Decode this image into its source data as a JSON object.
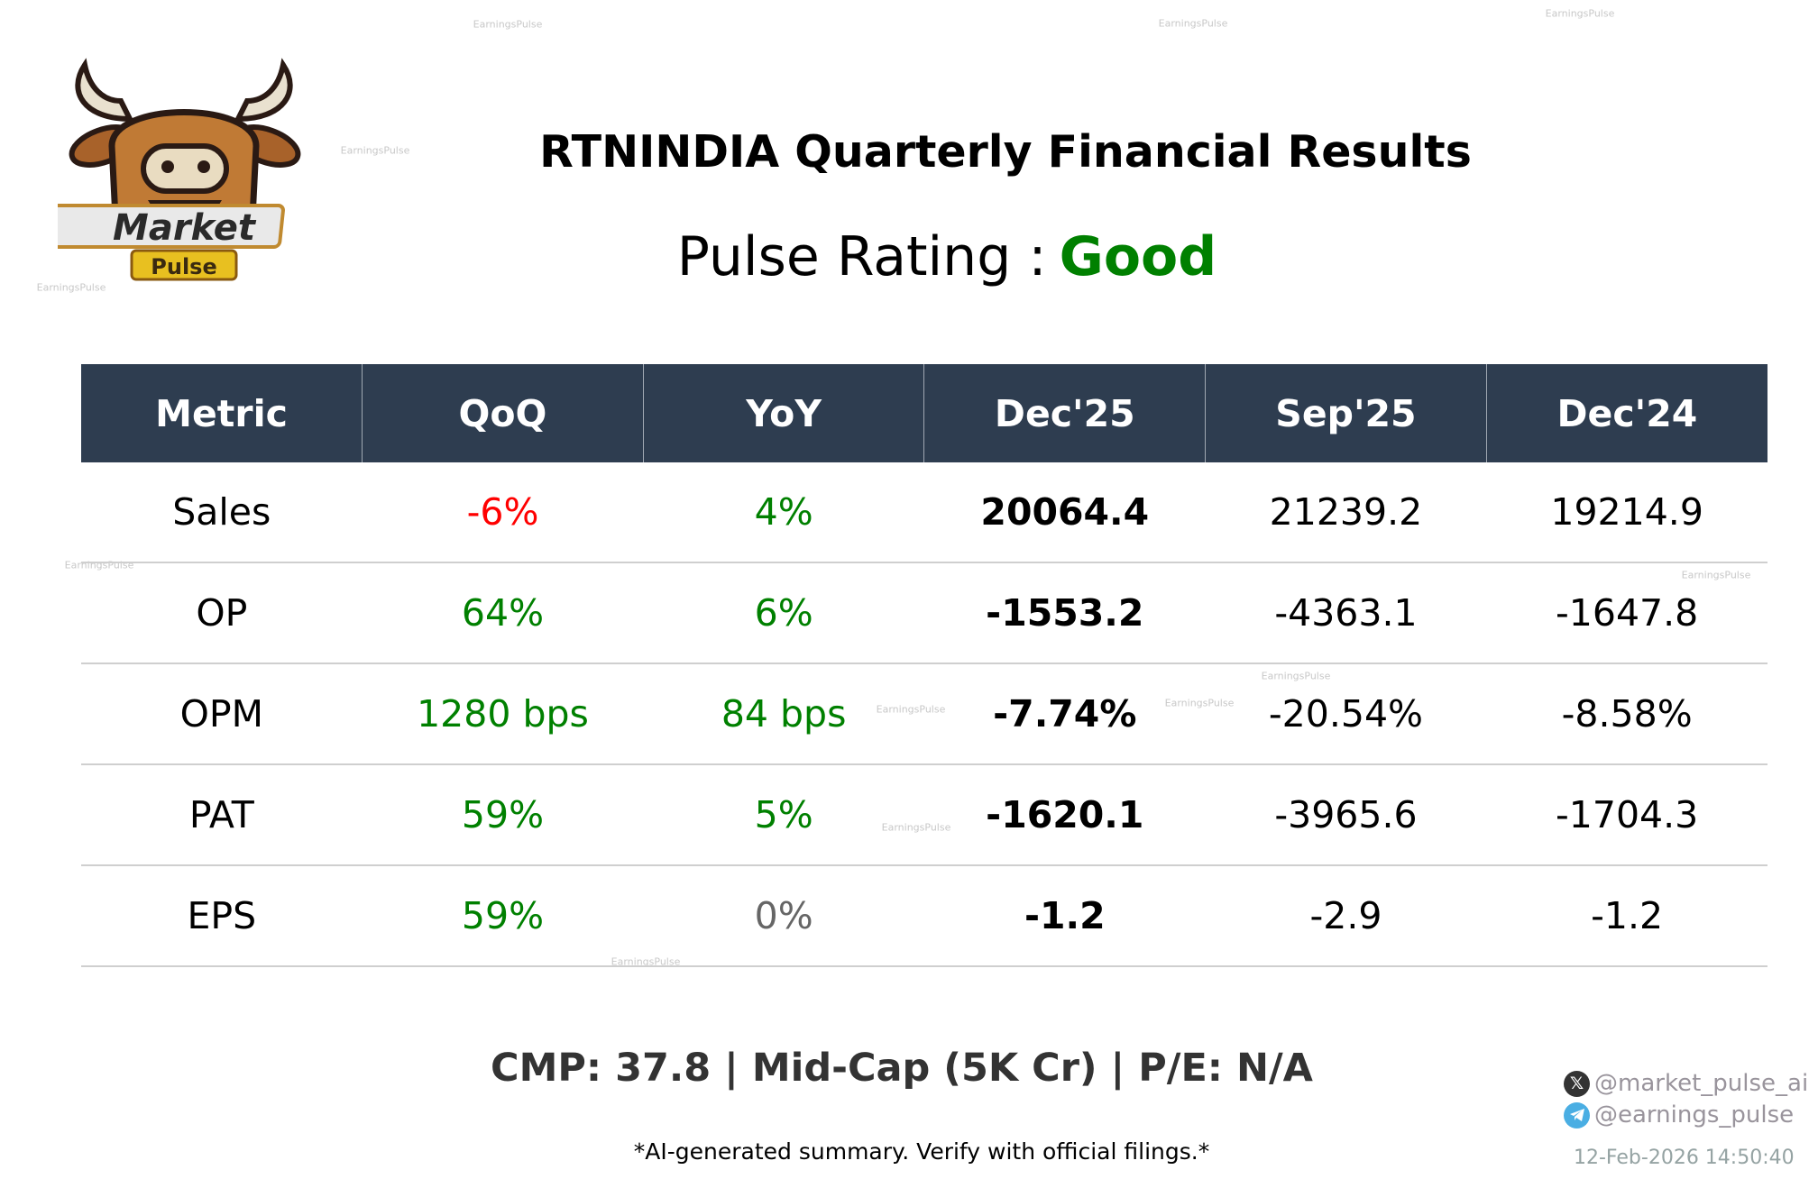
{
  "header": {
    "title": "RTNINDIA Quarterly Financial Results",
    "rating_label": "Pulse Rating :",
    "rating_value": "Good",
    "rating_color": "#008000"
  },
  "logo": {
    "text_line1": "Market",
    "text_line2": "Pulse"
  },
  "watermark": "EarningsPulse",
  "table": {
    "columns": [
      "Metric",
      "QoQ",
      "YoY",
      "Dec'25",
      "Sep'25",
      "Dec'24"
    ],
    "rows": [
      {
        "metric": "Sales",
        "qoq": "-6%",
        "qoq_color": "#ff0000",
        "yoy": "4%",
        "yoy_color": "#008000",
        "cur": "20064.4",
        "prev": "21239.2",
        "yago": "19214.9"
      },
      {
        "metric": "OP",
        "qoq": "64%",
        "qoq_color": "#008000",
        "yoy": "6%",
        "yoy_color": "#008000",
        "cur": "-1553.2",
        "prev": "-4363.1",
        "yago": "-1647.8"
      },
      {
        "metric": "OPM",
        "qoq": "1280 bps",
        "qoq_color": "#008000",
        "yoy": "84 bps",
        "yoy_color": "#008000",
        "cur": "-7.74%",
        "prev": "-20.54%",
        "yago": "-8.58%"
      },
      {
        "metric": "PAT",
        "qoq": "59%",
        "qoq_color": "#008000",
        "yoy": "5%",
        "yoy_color": "#008000",
        "cur": "-1620.1",
        "prev": "-3965.6",
        "yago": "-1704.3"
      },
      {
        "metric": "EPS",
        "qoq": "59%",
        "qoq_color": "#008000",
        "yoy": "0%",
        "yoy_color": "#666666",
        "cur": "-1.2",
        "prev": "-2.9",
        "yago": "-1.2"
      }
    ],
    "header_color": "#2e3d50"
  },
  "footer": {
    "summary": "CMP: 37.8 | Mid-Cap (5K Cr) | P/E: N/A",
    "disclaimer": "*AI-generated summary. Verify with official filings.*",
    "twitter": "@market_pulse_ai",
    "telegram": "@earnings_pulse",
    "timestamp": "12-Feb-2026 14:50:40"
  }
}
